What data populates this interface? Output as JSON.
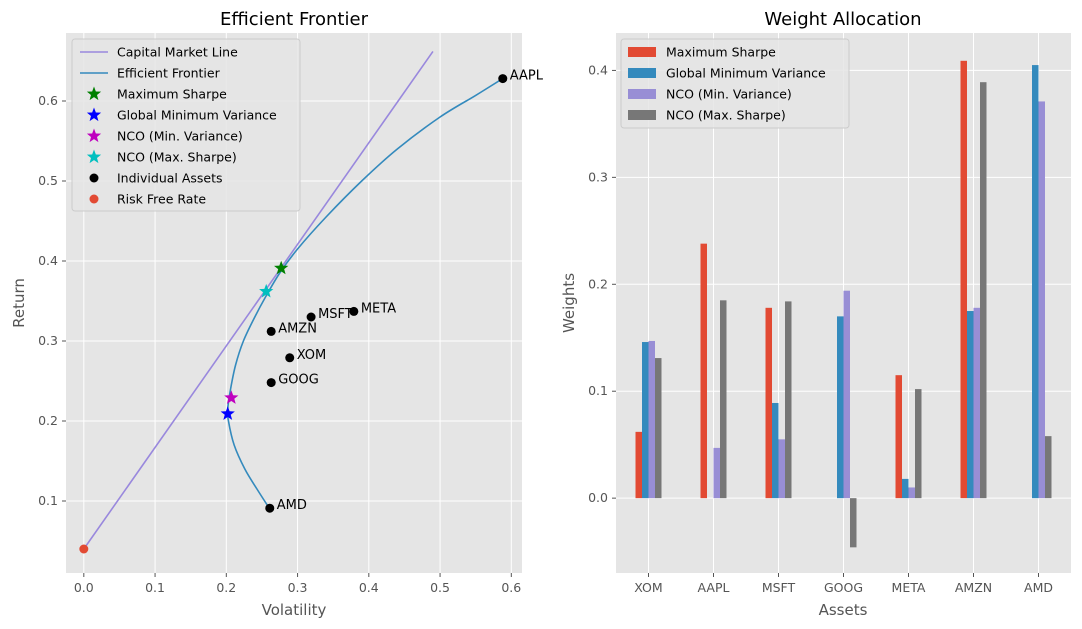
{
  "chart_data": [
    {
      "type": "line",
      "title": "Efficient Frontier",
      "xlabel": "Volatility",
      "ylabel": "Return",
      "xlim": [
        -0.025,
        0.615
      ],
      "ylim": [
        0.01,
        0.685
      ],
      "xticks": [
        "0.0",
        "0.1",
        "0.2",
        "0.3",
        "0.4",
        "0.5",
        "0.6"
      ],
      "yticks": [
        "0.1",
        "0.2",
        "0.3",
        "0.4",
        "0.5",
        "0.6"
      ],
      "grid": true,
      "legend_position": "top-left",
      "legend": [
        {
          "label": "Capital Market Line",
          "kind": "line",
          "color": "#9988dd"
        },
        {
          "label": "Efficient Frontier",
          "kind": "line",
          "color": "#348abd"
        },
        {
          "label": "Maximum Sharpe",
          "kind": "star",
          "color": "#008000"
        },
        {
          "label": "Global Minimum Variance",
          "kind": "star",
          "color": "#0000ff"
        },
        {
          "label": "NCO (Min. Variance)",
          "kind": "star",
          "color": "#bf00bf"
        },
        {
          "label": "NCO (Max. Sharpe)",
          "kind": "star",
          "color": "#00bfbf"
        },
        {
          "label": "Individual Assets",
          "kind": "dot",
          "color": "#000000"
        },
        {
          "label": "Risk Free Rate",
          "kind": "dot",
          "color": "#e24a33"
        }
      ],
      "capital_market_line": {
        "x": [
          0.0,
          0.49
        ],
        "y": [
          0.04,
          0.662
        ]
      },
      "efficient_frontier": {
        "x": [
          0.261,
          0.243,
          0.226,
          0.211,
          0.203,
          0.202,
          0.206,
          0.213,
          0.224,
          0.24,
          0.255,
          0.275,
          0.3,
          0.34,
          0.39,
          0.44,
          0.5,
          0.55,
          0.588
        ],
        "y": [
          0.09,
          0.115,
          0.14,
          0.17,
          0.2,
          0.215,
          0.24,
          0.27,
          0.3,
          0.33,
          0.355,
          0.385,
          0.415,
          0.455,
          0.5,
          0.54,
          0.58,
          0.607,
          0.628
        ]
      },
      "special_points": [
        {
          "name": "Maximum Sharpe",
          "x": 0.277,
          "y": 0.391,
          "color": "#008000"
        },
        {
          "name": "Global Minimum Variance",
          "x": 0.202,
          "y": 0.209,
          "color": "#0000ff"
        },
        {
          "name": "NCO (Min. Variance)",
          "x": 0.207,
          "y": 0.229,
          "color": "#bf00bf"
        },
        {
          "name": "NCO (Max. Sharpe)",
          "x": 0.256,
          "y": 0.362,
          "color": "#00bfbf"
        }
      ],
      "assets": [
        {
          "name": "XOM",
          "x": 0.289,
          "y": 0.279
        },
        {
          "name": "AAPL",
          "x": 0.588,
          "y": 0.628
        },
        {
          "name": "MSFT",
          "x": 0.319,
          "y": 0.33
        },
        {
          "name": "GOOG",
          "x": 0.263,
          "y": 0.248
        },
        {
          "name": "META",
          "x": 0.379,
          "y": 0.337
        },
        {
          "name": "AMZN",
          "x": 0.263,
          "y": 0.312
        },
        {
          "name": "AMD",
          "x": 0.261,
          "y": 0.091
        }
      ],
      "risk_free": {
        "x": 0.0,
        "y": 0.04
      }
    },
    {
      "type": "bar",
      "title": "Weight Allocation",
      "xlabel": "Assets",
      "ylabel": "Weights",
      "ylim": [
        -0.07,
        0.435
      ],
      "yticks": [
        "0.0",
        "0.1",
        "0.2",
        "0.3",
        "0.4"
      ],
      "grid": true,
      "legend_position": "top-left",
      "categories": [
        "XOM",
        "AAPL",
        "MSFT",
        "GOOG",
        "META",
        "AMZN",
        "AMD"
      ],
      "series": [
        {
          "name": "Maximum Sharpe",
          "color": "#e24a33",
          "values": [
            0.062,
            0.238,
            0.178,
            0.0,
            0.115,
            0.409,
            0.0
          ]
        },
        {
          "name": "Global Minimum Variance",
          "color": "#348abd",
          "values": [
            0.146,
            0.0,
            0.089,
            0.17,
            0.018,
            0.175,
            0.405
          ]
        },
        {
          "name": "NCO (Min. Variance)",
          "color": "#988ed5",
          "values": [
            0.147,
            0.047,
            0.055,
            0.194,
            0.01,
            0.178,
            0.371
          ]
        },
        {
          "name": "NCO (Max. Sharpe)",
          "color": "#777777",
          "values": [
            0.131,
            0.185,
            0.184,
            -0.046,
            0.102,
            0.389,
            0.058
          ]
        }
      ]
    }
  ]
}
